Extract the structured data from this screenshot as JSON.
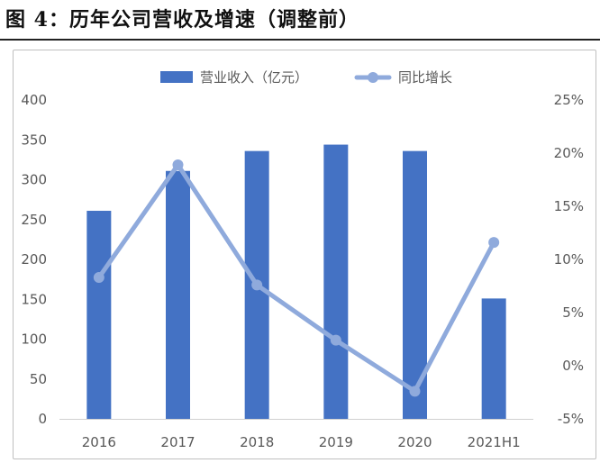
{
  "figure_title": "图 4：历年公司营收及增速（调整前）",
  "chart_data": {
    "type": "bar",
    "categories": [
      "2016",
      "2017",
      "2018",
      "2019",
      "2020",
      "2021H1"
    ],
    "series": [
      {
        "name": "营业收入（亿元）",
        "type": "bar",
        "axis": "left",
        "color": "#4472c4",
        "values": [
          261,
          311,
          336,
          344,
          336,
          151
        ]
      },
      {
        "name": "同比增长",
        "type": "line",
        "axis": "right",
        "color": "#8faadc",
        "values": [
          8.3,
          18.9,
          7.6,
          2.4,
          -2.4,
          11.6
        ]
      }
    ],
    "y_left": {
      "min": 0,
      "max": 400,
      "step": 50,
      "ticks": [
        "0",
        "50",
        "100",
        "150",
        "200",
        "250",
        "300",
        "350",
        "400"
      ]
    },
    "y_right": {
      "min": -5,
      "max": 25,
      "step": 5,
      "ticks": [
        "-5%",
        "0%",
        "5%",
        "10%",
        "15%",
        "20%",
        "25%"
      ]
    },
    "legend_position": "top-center",
    "grid": false
  }
}
